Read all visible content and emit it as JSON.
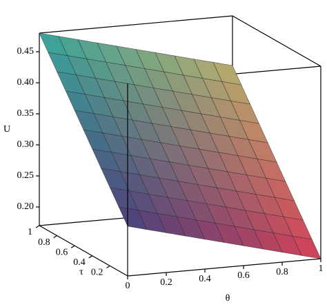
{
  "chart_data": {
    "type": "surface",
    "x_label": "θ",
    "y_label": "τ",
    "z_label": "U",
    "x": [
      0,
      0.1,
      0.2,
      0.3,
      0.4,
      0.5,
      0.6,
      0.7,
      0.8,
      0.9,
      1
    ],
    "y": [
      0,
      0.1,
      0.2,
      0.3,
      0.4,
      0.5,
      0.6,
      0.7,
      0.8,
      0.9,
      1
    ],
    "z": [
      [
        0.25,
        0.242,
        0.234,
        0.226,
        0.218,
        0.21,
        0.202,
        0.194,
        0.186,
        0.178,
        0.17
      ],
      [
        0.273,
        0.265,
        0.257,
        0.249,
        0.241,
        0.233,
        0.225,
        0.217,
        0.209,
        0.201,
        0.193
      ],
      [
        0.296,
        0.288,
        0.28,
        0.272,
        0.264,
        0.256,
        0.248,
        0.24,
        0.232,
        0.224,
        0.216
      ],
      [
        0.319,
        0.311,
        0.303,
        0.295,
        0.287,
        0.279,
        0.271,
        0.263,
        0.255,
        0.247,
        0.239
      ],
      [
        0.342,
        0.334,
        0.326,
        0.318,
        0.31,
        0.302,
        0.294,
        0.286,
        0.278,
        0.27,
        0.262
      ],
      [
        0.365,
        0.357,
        0.349,
        0.341,
        0.333,
        0.325,
        0.317,
        0.309,
        0.301,
        0.293,
        0.285
      ],
      [
        0.388,
        0.38,
        0.372,
        0.364,
        0.356,
        0.348,
        0.34,
        0.332,
        0.324,
        0.316,
        0.308
      ],
      [
        0.411,
        0.403,
        0.395,
        0.387,
        0.379,
        0.371,
        0.363,
        0.355,
        0.347,
        0.339,
        0.331
      ],
      [
        0.434,
        0.426,
        0.418,
        0.41,
        0.402,
        0.394,
        0.386,
        0.378,
        0.37,
        0.362,
        0.354
      ],
      [
        0.457,
        0.449,
        0.441,
        0.433,
        0.425,
        0.417,
        0.409,
        0.401,
        0.393,
        0.385,
        0.377
      ],
      [
        0.48,
        0.472,
        0.464,
        0.456,
        0.448,
        0.44,
        0.432,
        0.424,
        0.416,
        0.408,
        0.4
      ]
    ],
    "xlim": [
      0,
      1
    ],
    "ylim": [
      0,
      1
    ],
    "zlim": [
      0.17,
      0.48
    ],
    "xticks": [
      0,
      0.2,
      0.4,
      0.6,
      0.8,
      1
    ],
    "yticks": [
      0.2,
      0.4,
      0.6,
      0.8,
      1
    ],
    "zticks": [
      {
        "value": 0.2,
        "label": "0.20"
      },
      0.25,
      {
        "value": 0.3,
        "label": "0.30"
      },
      0.35,
      {
        "value": 0.4,
        "label": "0.40"
      },
      0.45
    ],
    "corner_colors": [
      "#4a3f7c",
      "#d63f58",
      "#35a79c",
      "#b8ad6c"
    ],
    "mesh_color": "#2a2a2a"
  }
}
